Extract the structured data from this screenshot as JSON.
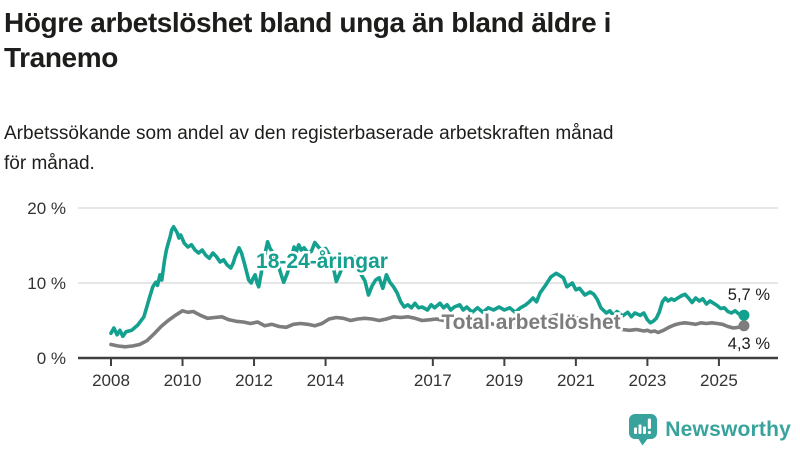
{
  "header": {
    "title_lines": [
      "Högre arbetslöshet bland unga än bland äldre i",
      "Tranemo"
    ],
    "subtitle_lines": [
      "Arbetssökande som andel av den registerbaserade arbetskraften månad",
      "för månad."
    ]
  },
  "chart_data": {
    "type": "line",
    "unit": "%",
    "grid": "horizontal-light",
    "legend_position": "inline-labels",
    "y_axis": {
      "range": [
        0,
        20
      ],
      "ticks": [
        {
          "value": 0,
          "label": "0 %"
        },
        {
          "value": 10,
          "label": "10 %"
        },
        {
          "value": 20,
          "label": "20 %"
        }
      ]
    },
    "x_axis": {
      "range": [
        2008,
        2025.7
      ],
      "ticks": [
        {
          "year": 2008,
          "label": "2008"
        },
        {
          "year": 2010,
          "label": "2010"
        },
        {
          "year": 2012,
          "label": "2012"
        },
        {
          "year": 2014,
          "label": "2014"
        },
        {
          "year": 2017,
          "label": "2017"
        },
        {
          "year": 2019,
          "label": "2019"
        },
        {
          "year": 2021,
          "label": "2021"
        },
        {
          "year": 2023,
          "label": "2023"
        },
        {
          "year": 2025,
          "label": "2025"
        }
      ]
    },
    "series": [
      {
        "id": "total",
        "name": "Total arbetslöshet",
        "color": "#7d7d7d",
        "end_label": "4,3 %",
        "end_value": 4.3,
        "points": [
          [
            2008.0,
            1.8
          ],
          [
            2008.2,
            1.6
          ],
          [
            2008.4,
            1.5
          ],
          [
            2008.6,
            1.6
          ],
          [
            2008.8,
            1.8
          ],
          [
            2009.0,
            2.3
          ],
          [
            2009.2,
            3.2
          ],
          [
            2009.4,
            4.2
          ],
          [
            2009.6,
            5.0
          ],
          [
            2009.8,
            5.7
          ],
          [
            2010.0,
            6.3
          ],
          [
            2010.15,
            6.1
          ],
          [
            2010.3,
            6.2
          ],
          [
            2010.5,
            5.7
          ],
          [
            2010.7,
            5.3
          ],
          [
            2010.9,
            5.4
          ],
          [
            2011.1,
            5.5
          ],
          [
            2011.3,
            5.1
          ],
          [
            2011.5,
            4.9
          ],
          [
            2011.7,
            4.8
          ],
          [
            2011.9,
            4.6
          ],
          [
            2012.1,
            4.8
          ],
          [
            2012.3,
            4.3
          ],
          [
            2012.5,
            4.5
          ],
          [
            2012.7,
            4.2
          ],
          [
            2012.9,
            4.1
          ],
          [
            2013.1,
            4.5
          ],
          [
            2013.3,
            4.6
          ],
          [
            2013.5,
            4.5
          ],
          [
            2013.7,
            4.3
          ],
          [
            2013.9,
            4.6
          ],
          [
            2014.1,
            5.2
          ],
          [
            2014.3,
            5.4
          ],
          [
            2014.5,
            5.3
          ],
          [
            2014.7,
            5.0
          ],
          [
            2014.9,
            5.2
          ],
          [
            2015.1,
            5.3
          ],
          [
            2015.3,
            5.2
          ],
          [
            2015.5,
            5.0
          ],
          [
            2015.7,
            5.2
          ],
          [
            2015.9,
            5.5
          ],
          [
            2016.1,
            5.4
          ],
          [
            2016.3,
            5.5
          ],
          [
            2016.5,
            5.3
          ],
          [
            2016.7,
            5.0
          ],
          [
            2016.9,
            5.1
          ],
          [
            2017.1,
            5.2
          ],
          [
            2017.3,
            5.0
          ],
          [
            2017.5,
            4.8
          ],
          [
            2017.7,
            4.9
          ],
          [
            2017.9,
            4.7
          ],
          [
            2018.1,
            4.8
          ],
          [
            2018.3,
            4.6
          ],
          [
            2018.5,
            4.7
          ],
          [
            2018.7,
            4.5
          ],
          [
            2018.9,
            4.6
          ],
          [
            2019.1,
            4.4
          ],
          [
            2019.3,
            4.5
          ],
          [
            2019.5,
            4.6
          ],
          [
            2019.7,
            4.7
          ],
          [
            2019.9,
            4.8
          ],
          [
            2020.1,
            5.0
          ],
          [
            2020.3,
            5.5
          ],
          [
            2020.5,
            5.8
          ],
          [
            2020.7,
            5.7
          ],
          [
            2020.9,
            5.5
          ],
          [
            2021.1,
            5.3
          ],
          [
            2021.3,
            5.1
          ],
          [
            2021.5,
            4.9
          ],
          [
            2021.7,
            4.6
          ],
          [
            2021.9,
            4.3
          ],
          [
            2022.1,
            4.0
          ],
          [
            2022.3,
            3.8
          ],
          [
            2022.5,
            3.7
          ],
          [
            2022.7,
            3.8
          ],
          [
            2022.9,
            3.6
          ],
          [
            2023.0,
            3.7
          ],
          [
            2023.1,
            3.5
          ],
          [
            2023.2,
            3.6
          ],
          [
            2023.3,
            3.4
          ],
          [
            2023.45,
            3.7
          ],
          [
            2023.6,
            4.1
          ],
          [
            2023.75,
            4.4
          ],
          [
            2023.9,
            4.6
          ],
          [
            2024.05,
            4.7
          ],
          [
            2024.2,
            4.6
          ],
          [
            2024.35,
            4.5
          ],
          [
            2024.5,
            4.7
          ],
          [
            2024.65,
            4.6
          ],
          [
            2024.8,
            4.7
          ],
          [
            2024.95,
            4.6
          ],
          [
            2025.1,
            4.5
          ],
          [
            2025.25,
            4.2
          ],
          [
            2025.4,
            4.0
          ],
          [
            2025.55,
            4.1
          ],
          [
            2025.7,
            4.3
          ]
        ]
      },
      {
        "id": "youth",
        "name": "18-24-åringar",
        "color": "#14a08f",
        "end_label": "5,7 %",
        "end_value": 5.7,
        "points": [
          [
            2008.0,
            3.3
          ],
          [
            2008.08,
            4.0
          ],
          [
            2008.17,
            3.1
          ],
          [
            2008.25,
            3.7
          ],
          [
            2008.33,
            2.9
          ],
          [
            2008.42,
            3.5
          ],
          [
            2008.58,
            3.7
          ],
          [
            2008.75,
            4.4
          ],
          [
            2008.92,
            5.5
          ],
          [
            2009.0,
            6.8
          ],
          [
            2009.08,
            8.1
          ],
          [
            2009.17,
            9.5
          ],
          [
            2009.25,
            10.1
          ],
          [
            2009.3,
            9.7
          ],
          [
            2009.37,
            11.1
          ],
          [
            2009.42,
            10.4
          ],
          [
            2009.5,
            13.1
          ],
          [
            2009.55,
            14.4
          ],
          [
            2009.6,
            15.3
          ],
          [
            2009.65,
            16.1
          ],
          [
            2009.7,
            17.1
          ],
          [
            2009.75,
            17.5
          ],
          [
            2009.85,
            16.7
          ],
          [
            2009.9,
            16.0
          ],
          [
            2009.95,
            16.4
          ],
          [
            2010.05,
            15.3
          ],
          [
            2010.15,
            14.8
          ],
          [
            2010.25,
            15.1
          ],
          [
            2010.35,
            14.4
          ],
          [
            2010.45,
            14.0
          ],
          [
            2010.55,
            14.4
          ],
          [
            2010.65,
            13.7
          ],
          [
            2010.75,
            13.3
          ],
          [
            2010.85,
            14.0
          ],
          [
            2010.95,
            13.5
          ],
          [
            2011.05,
            12.8
          ],
          [
            2011.15,
            13.1
          ],
          [
            2011.25,
            12.4
          ],
          [
            2011.35,
            12.0
          ],
          [
            2011.42,
            12.7
          ],
          [
            2011.47,
            13.5
          ],
          [
            2011.53,
            14.1
          ],
          [
            2011.58,
            14.7
          ],
          [
            2011.65,
            14.0
          ],
          [
            2011.72,
            12.8
          ],
          [
            2011.78,
            11.7
          ],
          [
            2011.85,
            10.4
          ],
          [
            2011.92,
            10.0
          ],
          [
            2011.97,
            10.6
          ],
          [
            2012.03,
            11.1
          ],
          [
            2012.08,
            10.1
          ],
          [
            2012.13,
            9.5
          ],
          [
            2012.18,
            10.8
          ],
          [
            2012.23,
            12.1
          ],
          [
            2012.28,
            13.1
          ],
          [
            2012.33,
            14.4
          ],
          [
            2012.38,
            15.5
          ],
          [
            2012.45,
            14.6
          ],
          [
            2012.52,
            14.1
          ],
          [
            2012.6,
            13.3
          ],
          [
            2012.67,
            12.7
          ],
          [
            2012.72,
            11.7
          ],
          [
            2012.78,
            10.8
          ],
          [
            2012.83,
            10.1
          ],
          [
            2012.88,
            10.7
          ],
          [
            2012.93,
            11.3
          ],
          [
            2012.98,
            12.1
          ],
          [
            2013.05,
            13.5
          ],
          [
            2013.12,
            14.8
          ],
          [
            2013.18,
            14.1
          ],
          [
            2013.25,
            15.1
          ],
          [
            2013.32,
            14.4
          ],
          [
            2013.4,
            14.7
          ],
          [
            2013.5,
            14.0
          ],
          [
            2013.6,
            14.2
          ],
          [
            2013.7,
            15.4
          ],
          [
            2013.8,
            14.8
          ],
          [
            2013.9,
            14.3
          ],
          [
            2014.0,
            14.6
          ],
          [
            2014.1,
            13.8
          ],
          [
            2014.2,
            12.5
          ],
          [
            2014.3,
            10.2
          ],
          [
            2014.4,
            11.3
          ],
          [
            2014.5,
            12.6
          ],
          [
            2014.6,
            13.4
          ],
          [
            2014.7,
            13.0
          ],
          [
            2014.8,
            13.5
          ],
          [
            2014.9,
            12.8
          ],
          [
            2015.0,
            11.1
          ],
          [
            2015.1,
            10.3
          ],
          [
            2015.2,
            8.4
          ],
          [
            2015.3,
            9.6
          ],
          [
            2015.4,
            10.4
          ],
          [
            2015.5,
            10.7
          ],
          [
            2015.6,
            9.3
          ],
          [
            2015.7,
            11.1
          ],
          [
            2015.8,
            10.1
          ],
          [
            2015.9,
            9.5
          ],
          [
            2016.0,
            8.7
          ],
          [
            2016.1,
            7.5
          ],
          [
            2016.2,
            6.8
          ],
          [
            2016.3,
            7.1
          ],
          [
            2016.4,
            6.7
          ],
          [
            2016.5,
            7.3
          ],
          [
            2016.6,
            6.7
          ],
          [
            2016.7,
            6.8
          ],
          [
            2016.85,
            6.4
          ],
          [
            2016.95,
            7.1
          ],
          [
            2017.05,
            6.7
          ],
          [
            2017.2,
            7.3
          ],
          [
            2017.3,
            6.7
          ],
          [
            2017.4,
            7.1
          ],
          [
            2017.5,
            6.4
          ],
          [
            2017.6,
            6.8
          ],
          [
            2017.75,
            7.1
          ],
          [
            2017.85,
            6.4
          ],
          [
            2017.95,
            6.8
          ],
          [
            2018.1,
            6.1
          ],
          [
            2018.25,
            6.7
          ],
          [
            2018.4,
            6.1
          ],
          [
            2018.55,
            6.7
          ],
          [
            2018.7,
            6.4
          ],
          [
            2018.85,
            6.8
          ],
          [
            2019.0,
            6.4
          ],
          [
            2019.15,
            6.7
          ],
          [
            2019.3,
            6.1
          ],
          [
            2019.45,
            6.7
          ],
          [
            2019.6,
            7.1
          ],
          [
            2019.7,
            7.5
          ],
          [
            2019.8,
            8.0
          ],
          [
            2019.9,
            7.5
          ],
          [
            2020.0,
            8.7
          ],
          [
            2020.15,
            9.7
          ],
          [
            2020.3,
            10.8
          ],
          [
            2020.45,
            11.3
          ],
          [
            2020.55,
            11.0
          ],
          [
            2020.65,
            10.7
          ],
          [
            2020.75,
            9.5
          ],
          [
            2020.9,
            10.0
          ],
          [
            2021.0,
            9.1
          ],
          [
            2021.1,
            9.3
          ],
          [
            2021.25,
            8.4
          ],
          [
            2021.4,
            8.8
          ],
          [
            2021.5,
            8.5
          ],
          [
            2021.6,
            7.8
          ],
          [
            2021.7,
            6.7
          ],
          [
            2021.85,
            6.0
          ],
          [
            2021.95,
            6.3
          ],
          [
            2022.05,
            5.7
          ],
          [
            2022.15,
            6.2
          ],
          [
            2022.3,
            5.6
          ],
          [
            2022.45,
            6.1
          ],
          [
            2022.55,
            5.5
          ],
          [
            2022.65,
            6.0
          ],
          [
            2022.8,
            5.7
          ],
          [
            2022.9,
            6.0
          ],
          [
            2023.0,
            5.1
          ],
          [
            2023.08,
            4.7
          ],
          [
            2023.16,
            4.9
          ],
          [
            2023.25,
            5.3
          ],
          [
            2023.33,
            6.1
          ],
          [
            2023.42,
            7.5
          ],
          [
            2023.5,
            8.0
          ],
          [
            2023.58,
            7.6
          ],
          [
            2023.67,
            7.9
          ],
          [
            2023.75,
            7.7
          ],
          [
            2023.85,
            8.0
          ],
          [
            2023.95,
            8.3
          ],
          [
            2024.05,
            8.5
          ],
          [
            2024.15,
            8.0
          ],
          [
            2024.25,
            7.4
          ],
          [
            2024.35,
            8.0
          ],
          [
            2024.45,
            7.6
          ],
          [
            2024.55,
            7.9
          ],
          [
            2024.65,
            7.2
          ],
          [
            2024.75,
            7.6
          ],
          [
            2024.85,
            7.3
          ],
          [
            2024.95,
            7.0
          ],
          [
            2025.05,
            6.6
          ],
          [
            2025.15,
            6.7
          ],
          [
            2025.25,
            6.2
          ],
          [
            2025.35,
            6.0
          ],
          [
            2025.45,
            6.3
          ],
          [
            2025.55,
            5.9
          ],
          [
            2025.65,
            5.8
          ],
          [
            2025.7,
            5.7
          ]
        ]
      }
    ]
  },
  "footer": {
    "brand": "Newsworthy",
    "brand_color": "#38a39c",
    "logo_icon": "bar-chart-speech-bubble"
  }
}
